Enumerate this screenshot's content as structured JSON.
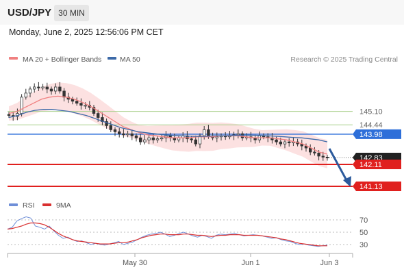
{
  "header": {
    "pair": "USD/JPY",
    "timeframe": "30 MIN",
    "datetime": "Monday, June 2, 2025 12:56:06 PM CET"
  },
  "legend": {
    "ma20": "MA 20 + Bollinger Bands",
    "ma50": "MA 50",
    "credit": "Research © 2025 Trading Central"
  },
  "rsi_legend": {
    "rsi": "RSI",
    "ma": "9MA"
  },
  "colors": {
    "ma20": "#f08080",
    "band_fill": "#fbd7d7",
    "ma50": "#3d6aa8",
    "support": "#e0201e",
    "current": "#222222",
    "pivot_tag": "#2e6fd9",
    "resistance_line": "#a8cf8a",
    "arrow": "#2c5a9c",
    "rsi": "#6f8fd8",
    "rsi_ma": "#d93030"
  },
  "chart_data": [
    {
      "type": "line",
      "title": "USD/JPY 30 MIN",
      "x_ticks": [
        "May 30",
        "Jun 1",
        "Jun 3"
      ],
      "ylim": [
        140.6,
        146.4
      ],
      "current_price": 142.83,
      "pivot": 143.98,
      "resistances": [
        145.1,
        144.44
      ],
      "supports": [
        142.11,
        141.13
      ],
      "level_labels": [
        "145.10",
        "144.44",
        "143.98",
        "142.83",
        "142.11",
        "141.13"
      ],
      "forecast": {
        "from": 142.83,
        "to": 141.13,
        "direction": "down"
      },
      "series": [
        {
          "name": "Price",
          "values": [
            144.9,
            144.85,
            145.0,
            145.8,
            146.0,
            146.2,
            146.3,
            146.25,
            146.3,
            146.2,
            146.1,
            146.3,
            146.1,
            145.8,
            145.7,
            145.6,
            145.5,
            145.4,
            145.4,
            145.3,
            145.0,
            144.8,
            144.6,
            144.4,
            144.2,
            144.1,
            144.0,
            143.95,
            144.0,
            143.9,
            143.8,
            143.6,
            143.7,
            143.8,
            143.7,
            143.75,
            143.8,
            143.9,
            143.8,
            143.7,
            143.8,
            143.9,
            143.75,
            143.7,
            143.5,
            143.9,
            144.2,
            143.9,
            143.8,
            143.85,
            143.9,
            143.85,
            143.9,
            143.95,
            144.0,
            143.8,
            143.85,
            143.8,
            143.7,
            143.9,
            143.85,
            143.8,
            143.7,
            143.6,
            143.5,
            143.6,
            143.55,
            143.6,
            143.5,
            143.4,
            143.3,
            143.1,
            143.05,
            142.9,
            142.85,
            142.83
          ]
        },
        {
          "name": "MA 20",
          "values": [
            145.0,
            145.1,
            145.3,
            145.5,
            145.7,
            145.8,
            145.85,
            145.8,
            145.7,
            145.55,
            145.35,
            145.1,
            144.85,
            144.6,
            144.35,
            144.2,
            144.05,
            143.95,
            143.9,
            143.85,
            143.8,
            143.8,
            143.8,
            143.85,
            143.85,
            143.85,
            143.9,
            143.9,
            143.9,
            143.85,
            143.8,
            143.8,
            143.8,
            143.75,
            143.7,
            143.6,
            143.5,
            143.3,
            143.1,
            143.0
          ]
        },
        {
          "name": "MA 50",
          "values": [
            144.8,
            144.9,
            145.05,
            145.15,
            145.2,
            145.2,
            145.15,
            145.1,
            145.0,
            144.9,
            144.75,
            144.6,
            144.45,
            144.3,
            144.2,
            144.1,
            144.05,
            144.0,
            143.95,
            143.92,
            143.9,
            143.88,
            143.87,
            143.88,
            143.9,
            143.9,
            143.92,
            143.93,
            143.93,
            143.92,
            143.9,
            143.88,
            143.85,
            143.82,
            143.8,
            143.75,
            143.7,
            143.6
          ]
        }
      ]
    },
    {
      "type": "line",
      "title": "",
      "y_ticks": [
        "70",
        "50",
        "30"
      ],
      "ylim": [
        20,
        80
      ],
      "series": [
        {
          "name": "RSI",
          "values": [
            55,
            58,
            68,
            72,
            75,
            73,
            60,
            58,
            55,
            60,
            52,
            45,
            40,
            42,
            38,
            35,
            36,
            33,
            30,
            32,
            30,
            29,
            31,
            33,
            35,
            30,
            32,
            34,
            38,
            42,
            45,
            47,
            48,
            50,
            47,
            43,
            45,
            48,
            50,
            47,
            44,
            42,
            45,
            43,
            40,
            45,
            47,
            46,
            47,
            48,
            46,
            44,
            45,
            46,
            45,
            44,
            42,
            40,
            41,
            38,
            36,
            35,
            32,
            30,
            31,
            29,
            28,
            27,
            28,
            29
          ]
        },
        {
          "name": "9MA",
          "values": [
            55,
            56,
            58,
            60,
            63,
            65,
            65,
            64,
            62,
            58,
            53,
            48,
            44,
            41,
            38,
            36,
            35,
            34,
            33,
            32,
            31,
            31,
            31,
            32,
            33,
            33,
            34,
            36,
            38,
            41,
            43,
            45,
            46,
            47,
            47,
            46,
            46,
            46,
            47,
            47,
            46,
            45,
            45,
            44,
            43,
            44,
            45,
            45,
            46,
            46,
            46,
            45,
            45,
            45,
            45,
            44,
            43,
            42,
            41,
            39,
            38,
            36,
            34,
            32,
            31,
            30,
            29,
            28,
            28,
            28
          ]
        }
      ]
    }
  ]
}
